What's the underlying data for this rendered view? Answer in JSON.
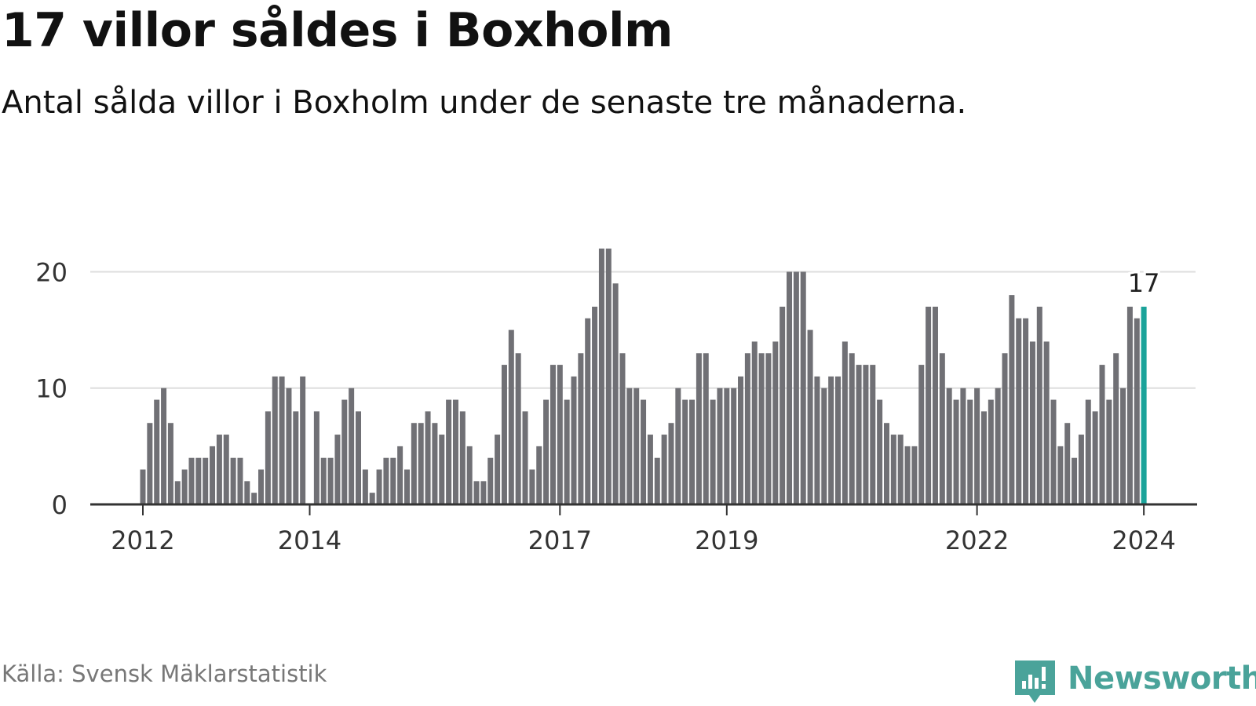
{
  "title": "17 villor såldes i Boxholm",
  "subtitle": "Antal sålda villor i Boxholm under de senaste tre månaderna.",
  "source": "Källa: Svensk Mäklarstatistik",
  "brand": "Newsworthy",
  "colors": {
    "bar": "#707075",
    "highlight": "#1aa39a",
    "grid": "#dddddd",
    "axis": "#333333",
    "brand": "#4aa39a"
  },
  "chart_data": {
    "type": "bar",
    "title": "17 villor såldes i Boxholm",
    "xlabel": "",
    "ylabel": "",
    "ylim": [
      0,
      23
    ],
    "yticks": [
      0,
      10,
      20
    ],
    "start": {
      "year": 2012,
      "month": 1
    },
    "xtick_labels": [
      "2012",
      "2014",
      "2017",
      "2019",
      "2022",
      "2024"
    ],
    "highlight_label": "17",
    "values": [
      3,
      7,
      9,
      10,
      7,
      2,
      3,
      4,
      4,
      4,
      5,
      6,
      6,
      4,
      4,
      2,
      1,
      3,
      8,
      11,
      11,
      10,
      8,
      11,
      0,
      8,
      4,
      4,
      6,
      9,
      10,
      8,
      3,
      1,
      3,
      4,
      4,
      5,
      3,
      7,
      7,
      8,
      7,
      6,
      9,
      9,
      8,
      5,
      2,
      2,
      4,
      6,
      12,
      15,
      13,
      8,
      3,
      5,
      9,
      12,
      12,
      9,
      11,
      13,
      16,
      17,
      22,
      22,
      19,
      13,
      10,
      10,
      9,
      6,
      4,
      6,
      7,
      10,
      9,
      9,
      13,
      13,
      9,
      10,
      10,
      10,
      11,
      13,
      14,
      13,
      13,
      14,
      17,
      20,
      20,
      20,
      15,
      11,
      10,
      11,
      11,
      14,
      13,
      12,
      12,
      12,
      9,
      7,
      6,
      6,
      5,
      5,
      12,
      17,
      17,
      13,
      10,
      9,
      10,
      9,
      10,
      8,
      9,
      10,
      13,
      18,
      16,
      16,
      14,
      17,
      14,
      9,
      5,
      7,
      4,
      6,
      9,
      8,
      12,
      9,
      13,
      10,
      17,
      16,
      17
    ]
  }
}
